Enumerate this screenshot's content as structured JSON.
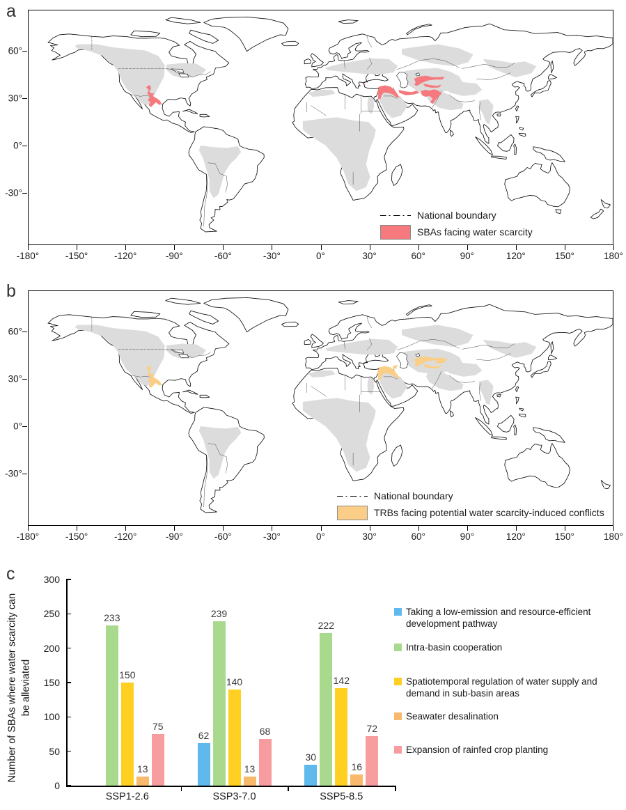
{
  "figure": {
    "map_axes": {
      "lon_ticks": [
        "-180°",
        "-150°",
        "-120°",
        "-90°",
        "-60°",
        "-30°",
        "0°",
        "30°",
        "60°",
        "90°",
        "120°",
        "150°",
        "180°"
      ],
      "lat_ticks": [
        "60°",
        "30°",
        "0°",
        "-30°"
      ]
    },
    "map_style": {
      "basin_gray": "#dcdcdc",
      "coast_color": "#111111"
    },
    "panel_a": {
      "label": "a",
      "legend": {
        "boundary_label": "National boundary",
        "area_label": "SBAs facing water scarcity",
        "area_color": "#f5797d"
      }
    },
    "panel_b": {
      "label": "b",
      "legend": {
        "boundary_label": "National boundary",
        "area_label": "TRBs facing potential water scarcity-induced conflicts",
        "area_color": "#fbce88"
      }
    },
    "panel_c": {
      "label": "c",
      "ylabel_wrap": [
        "Number of SBAs where water scarcity can",
        "be alleviated"
      ]
    }
  },
  "chart_data": {
    "type": "bar",
    "categories": [
      "SSP1-2.6",
      "SSP3-7.0",
      "SSP5-8.5"
    ],
    "series": [
      {
        "name": "Taking a low-emission and resource-efficient development pathway",
        "color": "#5fb9ec",
        "values": [
          null,
          62,
          30
        ]
      },
      {
        "name": "Intra-basin cooperation",
        "color": "#a9d98c",
        "values": [
          233,
          239,
          222
        ]
      },
      {
        "name": "Spatiotemporal regulation of water supply and demand in sub-basin areas",
        "color": "#ffd022",
        "values": [
          150,
          140,
          142
        ]
      },
      {
        "name": "Seawater desalination",
        "color": "#f9b96d",
        "values": [
          13,
          13,
          16
        ]
      },
      {
        "name": "Expansion of rainfed crop planting",
        "color": "#f79c9f",
        "values": [
          75,
          68,
          72
        ]
      }
    ],
    "ylabel": "Number of SBAs where water scarcity can be alleviated",
    "ylim": [
      0,
      300
    ],
    "ytick_step": 50,
    "grid": false,
    "legend_position": "right",
    "bar_value_labels": true
  }
}
